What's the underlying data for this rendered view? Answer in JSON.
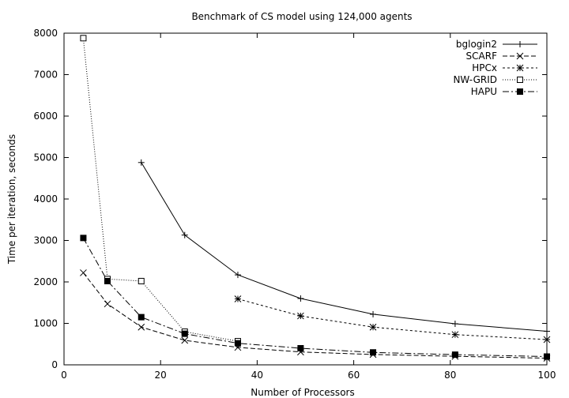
{
  "chart_data": {
    "type": "line",
    "title": "Benchmark of CS model using 124,000 agents",
    "xlabel": "Number of Processors",
    "ylabel": "Time per iteration, seconds",
    "xlim": [
      0,
      100
    ],
    "ylim": [
      0,
      8000
    ],
    "xticks": [
      0,
      20,
      40,
      60,
      80,
      100
    ],
    "yticks": [
      0,
      1000,
      2000,
      3000,
      4000,
      5000,
      6000,
      7000,
      8000
    ],
    "grid": false,
    "legend_position": "top-right",
    "series": [
      {
        "name": "bglogin2",
        "marker": "plus",
        "dash": "solid",
        "x": [
          16,
          25,
          36,
          49,
          64,
          81,
          100
        ],
        "y": [
          4880,
          3130,
          2170,
          1600,
          1220,
          990,
          810
        ]
      },
      {
        "name": "SCARF",
        "marker": "cross",
        "dash": "long",
        "x": [
          4,
          9,
          16,
          25,
          36,
          49,
          64,
          81,
          100
        ],
        "y": [
          2220,
          1470,
          910,
          590,
          420,
          310,
          250,
          205,
          160
        ]
      },
      {
        "name": "HPCx",
        "marker": "star",
        "dash": "short",
        "x": [
          36,
          49,
          64,
          81,
          100
        ],
        "y": [
          1590,
          1180,
          910,
          730,
          610
        ]
      },
      {
        "name": "NW-GRID",
        "marker": "open-square",
        "dash": "dotted",
        "x": [
          4,
          9,
          16,
          25,
          36
        ],
        "y": [
          7880,
          2070,
          2020,
          800,
          570
        ]
      },
      {
        "name": "HAPU",
        "marker": "filled-square",
        "dash": "dashdot",
        "x": [
          4,
          9,
          16,
          25,
          36,
          49,
          64,
          81,
          100
        ],
        "y": [
          3060,
          2020,
          1150,
          750,
          520,
          400,
          300,
          245,
          200
        ]
      }
    ]
  }
}
